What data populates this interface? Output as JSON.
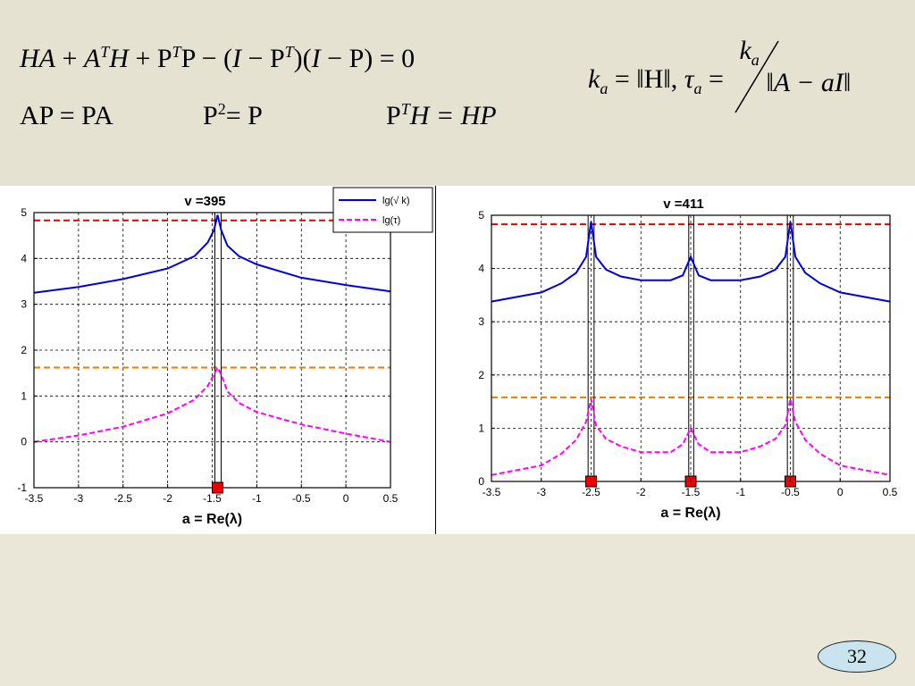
{
  "formulas": {
    "riccati": [
      "HA",
      " + ",
      "A",
      "T",
      "H",
      " + P",
      "T",
      "P − (",
      "I",
      " − P",
      "T",
      ")(",
      "I",
      " − P) = 0"
    ],
    "commute": "AP = PA",
    "idempotent": "P",
    "idempotent_exp": "2",
    "idempotent_rhs": " = P",
    "adjoint": "P",
    "adjoint_exp": "T",
    "adjoint_rhs": "H = HP",
    "k_def": "k",
    "k_sub": "a",
    "k_rhs": " = ‖H‖, ",
    "tau_def": "τ",
    "tau_sub": "a",
    "tau_eq": " = ",
    "tau_num": "k",
    "tau_num_sub": "a",
    "tau_den": "‖A − aI‖"
  },
  "page_number": "32",
  "colors": {
    "blue_curve": "#0000dd",
    "magenta_curve": "#ff00ff",
    "red_threshold": "#e00000",
    "orange_threshold": "#e08000",
    "marker": "#ee0000"
  },
  "chart_data": [
    {
      "type": "line",
      "title": "v =395",
      "xlabel": "a = Re(λ)",
      "ylabel": "",
      "xlim": [
        -3.5,
        0.5
      ],
      "ylim": [
        -1,
        5
      ],
      "xticks": [
        -3.5,
        -3,
        -2.5,
        -2,
        -1.5,
        -1,
        -0.5,
        0,
        0.5
      ],
      "xtick_labels": [
        "-3.5",
        "-3",
        "-2.5",
        "-2",
        "-1.5",
        "-1",
        "-0.5",
        "0",
        "0.5"
      ],
      "yticks": [
        -1,
        0,
        1,
        2,
        3,
        4,
        5
      ],
      "ytick_labels": [
        "-1",
        "0",
        "1",
        "2",
        "3",
        "4",
        "5"
      ],
      "grid": true,
      "legend": "top-right",
      "series": [
        {
          "name": "lg(√ k)",
          "style": "solid",
          "color": "#0000dd",
          "points": [
            [
              -3.5,
              3.25
            ],
            [
              -3.0,
              3.38
            ],
            [
              -2.5,
              3.55
            ],
            [
              -2.0,
              3.78
            ],
            [
              -1.7,
              4.05
            ],
            [
              -1.55,
              4.35
            ],
            [
              -1.48,
              4.62
            ],
            [
              -1.44,
              4.95
            ],
            [
              -1.4,
              4.62
            ],
            [
              -1.33,
              4.28
            ],
            [
              -1.2,
              4.05
            ],
            [
              -1.0,
              3.87
            ],
            [
              -0.5,
              3.58
            ],
            [
              0.0,
              3.42
            ],
            [
              0.5,
              3.28
            ]
          ]
        },
        {
          "name": "lg(τ)",
          "style": "dashed",
          "color": "#ff00ff",
          "points": [
            [
              -3.5,
              0.0
            ],
            [
              -3.0,
              0.14
            ],
            [
              -2.5,
              0.33
            ],
            [
              -2.0,
              0.62
            ],
            [
              -1.7,
              0.92
            ],
            [
              -1.55,
              1.22
            ],
            [
              -1.48,
              1.47
            ],
            [
              -1.44,
              1.62
            ],
            [
              -1.4,
              1.47
            ],
            [
              -1.33,
              1.1
            ],
            [
              -1.2,
              0.85
            ],
            [
              -1.0,
              0.65
            ],
            [
              -0.5,
              0.38
            ],
            [
              0.0,
              0.18
            ],
            [
              0.5,
              0.0
            ]
          ]
        }
      ],
      "hlines": [
        {
          "y": 4.83,
          "color": "#e00000"
        },
        {
          "y": 1.62,
          "color": "#e08000"
        }
      ],
      "markers": [
        -1.44
      ],
      "bands": [
        [
          -1.47,
          -1.4
        ]
      ]
    },
    {
      "type": "line",
      "title": "v =411",
      "xlabel": "a = Re(λ)",
      "ylabel": "",
      "xlim": [
        -3.5,
        0.5
      ],
      "ylim": [
        0,
        5
      ],
      "xticks": [
        -3.5,
        -3,
        -2.5,
        -2,
        -1.5,
        -1,
        -0.5,
        0,
        0.5
      ],
      "xtick_labels": [
        "-3.5",
        "-3",
        "-2.5",
        "-2",
        "-1.5",
        "-1",
        "-0.5",
        "0",
        "0.5"
      ],
      "yticks": [
        0,
        1,
        2,
        3,
        4,
        5
      ],
      "ytick_labels": [
        "0",
        "1",
        "2",
        "3",
        "4",
        "5"
      ],
      "grid": true,
      "legend": "",
      "series": [
        {
          "name": "",
          "style": "solid",
          "color": "#0000dd",
          "points": [
            [
              -3.5,
              3.38
            ],
            [
              -3.0,
              3.55
            ],
            [
              -2.8,
              3.72
            ],
            [
              -2.65,
              3.92
            ],
            [
              -2.55,
              4.22
            ],
            [
              -2.5,
              4.88
            ],
            [
              -2.45,
              4.22
            ],
            [
              -2.35,
              3.98
            ],
            [
              -2.2,
              3.85
            ],
            [
              -2.0,
              3.78
            ],
            [
              -1.7,
              3.78
            ],
            [
              -1.58,
              3.87
            ],
            [
              -1.5,
              4.22
            ],
            [
              -1.42,
              3.87
            ],
            [
              -1.3,
              3.78
            ],
            [
              -1.0,
              3.78
            ],
            [
              -0.8,
              3.85
            ],
            [
              -0.65,
              3.98
            ],
            [
              -0.55,
              4.22
            ],
            [
              -0.5,
              4.88
            ],
            [
              -0.45,
              4.22
            ],
            [
              -0.35,
              3.92
            ],
            [
              -0.2,
              3.72
            ],
            [
              0.0,
              3.55
            ],
            [
              0.5,
              3.38
            ]
          ]
        },
        {
          "name": "",
          "style": "dashed",
          "color": "#ff00ff",
          "points": [
            [
              -3.5,
              0.12
            ],
            [
              -3.0,
              0.3
            ],
            [
              -2.8,
              0.52
            ],
            [
              -2.65,
              0.78
            ],
            [
              -2.55,
              1.12
            ],
            [
              -2.5,
              1.55
            ],
            [
              -2.45,
              1.05
            ],
            [
              -2.35,
              0.8
            ],
            [
              -2.2,
              0.66
            ],
            [
              -2.0,
              0.55
            ],
            [
              -1.7,
              0.55
            ],
            [
              -1.58,
              0.7
            ],
            [
              -1.5,
              1.0
            ],
            [
              -1.42,
              0.7
            ],
            [
              -1.3,
              0.55
            ],
            [
              -1.0,
              0.55
            ],
            [
              -0.8,
              0.66
            ],
            [
              -0.65,
              0.8
            ],
            [
              -0.55,
              1.05
            ],
            [
              -0.5,
              1.55
            ],
            [
              -0.45,
              1.12
            ],
            [
              -0.35,
              0.78
            ],
            [
              -0.2,
              0.52
            ],
            [
              0.0,
              0.3
            ],
            [
              0.5,
              0.12
            ]
          ]
        }
      ],
      "hlines": [
        {
          "y": 4.83,
          "color": "#e00000"
        },
        {
          "y": 1.58,
          "color": "#e08000"
        }
      ],
      "markers": [
        -2.5,
        -1.5,
        -0.5
      ],
      "bands": [
        [
          -2.53,
          -2.47
        ],
        [
          -1.52,
          -1.47
        ],
        [
          -0.53,
          -0.47
        ]
      ]
    }
  ]
}
